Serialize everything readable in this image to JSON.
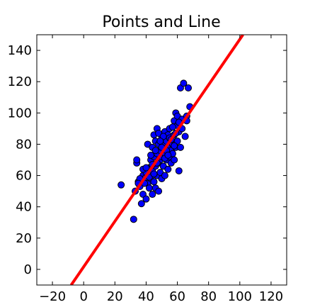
{
  "chart_data": {
    "type": "scatter",
    "title": "Points and Line",
    "xlabel": "",
    "ylabel": "",
    "xlim": [
      -30,
      130
    ],
    "ylim": [
      -10,
      150
    ],
    "x_ticks": [
      -20,
      0,
      20,
      40,
      60,
      80,
      100,
      120
    ],
    "y_ticks": [
      0,
      20,
      40,
      60,
      80,
      100,
      120,
      140
    ],
    "x_tick_labels": [
      "−20",
      "0",
      "20",
      "40",
      "60",
      "80",
      "100",
      "120"
    ],
    "y_tick_labels": [
      "0",
      "20",
      "40",
      "60",
      "80",
      "100",
      "120",
      "140"
    ],
    "grid": false,
    "legend": "none",
    "series": [
      {
        "kind": "scatter",
        "color": "#0000ff",
        "edge_color": "#000000",
        "points": [
          [
            24,
            54
          ],
          [
            32,
            32
          ],
          [
            33,
            50
          ],
          [
            34,
            68
          ],
          [
            34,
            70
          ],
          [
            35,
            56
          ],
          [
            36,
            53
          ],
          [
            37,
            42
          ],
          [
            38,
            48
          ],
          [
            38,
            60
          ],
          [
            39,
            58
          ],
          [
            40,
            45
          ],
          [
            40,
            62
          ],
          [
            41,
            55
          ],
          [
            41,
            80
          ],
          [
            42,
            52
          ],
          [
            42,
            65
          ],
          [
            43,
            70
          ],
          [
            43,
            58
          ],
          [
            44,
            48
          ],
          [
            44,
            63
          ],
          [
            44,
            78
          ],
          [
            45,
            56
          ],
          [
            45,
            72
          ],
          [
            45,
            86
          ],
          [
            46,
            52
          ],
          [
            46,
            66
          ],
          [
            46,
            82
          ],
          [
            47,
            60
          ],
          [
            47,
            74
          ],
          [
            47,
            90
          ],
          [
            48,
            50
          ],
          [
            48,
            68
          ],
          [
            48,
            80
          ],
          [
            49,
            62
          ],
          [
            49,
            76
          ],
          [
            49,
            70
          ],
          [
            50,
            58
          ],
          [
            50,
            72
          ],
          [
            50,
            84
          ],
          [
            51,
            66
          ],
          [
            51,
            80
          ],
          [
            52,
            60
          ],
          [
            52,
            74
          ],
          [
            52,
            88
          ],
          [
            53,
            70
          ],
          [
            53,
            82
          ],
          [
            54,
            64
          ],
          [
            54,
            78
          ],
          [
            54,
            86
          ],
          [
            55,
            72
          ],
          [
            55,
            84
          ],
          [
            55,
            90
          ],
          [
            56,
            68
          ],
          [
            56,
            76
          ],
          [
            57,
            80
          ],
          [
            57,
            74
          ],
          [
            58,
            70
          ],
          [
            58,
            86
          ],
          [
            58,
            95
          ],
          [
            59,
            78
          ],
          [
            59,
            100
          ],
          [
            60,
            82
          ],
          [
            60,
            92
          ],
          [
            60,
            98
          ],
          [
            61,
            63
          ],
          [
            61,
            88
          ],
          [
            62,
            78
          ],
          [
            62,
            116
          ],
          [
            63,
            96
          ],
          [
            63,
            90
          ],
          [
            64,
            119
          ],
          [
            65,
            85
          ],
          [
            66,
            98
          ],
          [
            66,
            95
          ],
          [
            67,
            116
          ],
          [
            68,
            104
          ],
          [
            46,
            76
          ],
          [
            48,
            87
          ],
          [
            50,
            78
          ],
          [
            52,
            71
          ],
          [
            53,
            76
          ],
          [
            44,
            67
          ],
          [
            42,
            59
          ],
          [
            38,
            64
          ],
          [
            36,
            58
          ],
          [
            56,
            83
          ],
          [
            57,
            91
          ],
          [
            59,
            87
          ],
          [
            51,
            85
          ],
          [
            47,
            68
          ],
          [
            43,
            73
          ],
          [
            45,
            61
          ],
          [
            49,
            82
          ],
          [
            54,
            73
          ],
          [
            58,
            79
          ],
          [
            61,
            94
          ],
          [
            40,
            65
          ],
          [
            39,
            55
          ],
          [
            35,
            55
          ]
        ]
      },
      {
        "kind": "line",
        "color": "#ff0000",
        "points": [
          [
            -8,
            -10
          ],
          [
            102,
            150
          ]
        ]
      }
    ]
  }
}
